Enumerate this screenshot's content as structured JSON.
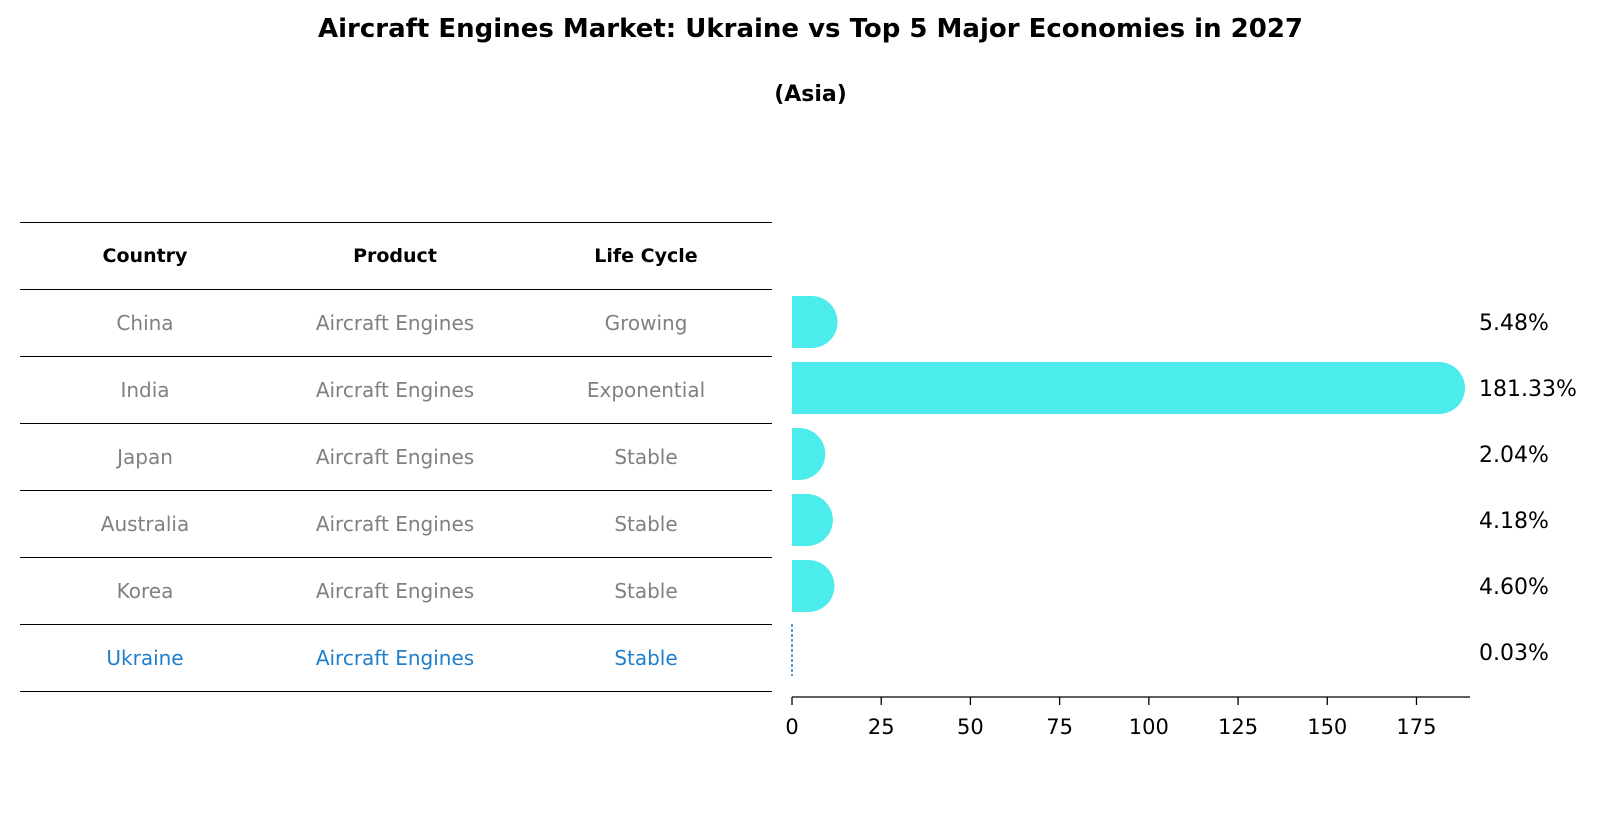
{
  "title": "Aircraft Engines Market: Ukraine vs Top 5 Major Economies in 2027",
  "subtitle": "(Asia)",
  "table": {
    "headers": [
      "Country",
      "Product",
      "Life Cycle"
    ],
    "rows": [
      {
        "country": "China",
        "product": "Aircraft Engines",
        "life_cycle": "Growing"
      },
      {
        "country": "India",
        "product": "Aircraft Engines",
        "life_cycle": "Exponential"
      },
      {
        "country": "Japan",
        "product": "Aircraft Engines",
        "life_cycle": "Stable"
      },
      {
        "country": "Australia",
        "product": "Aircraft Engines",
        "life_cycle": "Stable"
      },
      {
        "country": "Korea",
        "product": "Aircraft Engines",
        "life_cycle": "Stable"
      },
      {
        "country": "Ukraine",
        "product": "Aircraft Engines",
        "life_cycle": "Stable"
      }
    ]
  },
  "colors": {
    "bar": "#4beceb",
    "highlight": "#1f7fcc"
  },
  "chart_data": {
    "type": "bar",
    "orientation": "horizontal",
    "title": "Aircraft Engines Market: Ukraine vs Top 5 Major Economies in 2027",
    "subtitle": "(Asia)",
    "categories": [
      "China",
      "India",
      "Japan",
      "Australia",
      "Korea",
      "Ukraine"
    ],
    "values": [
      5.48,
      181.33,
      2.04,
      4.18,
      4.6,
      0.03
    ],
    "value_labels": [
      "5.48%",
      "181.33%",
      "2.04%",
      "4.18%",
      "4.60%",
      "0.03%"
    ],
    "xlim": [
      0,
      190
    ],
    "xticks": [
      0,
      25,
      50,
      75,
      100,
      125,
      150,
      175
    ],
    "xlabel": "",
    "ylabel": "",
    "grid": false,
    "highlight": "Ukraine"
  }
}
